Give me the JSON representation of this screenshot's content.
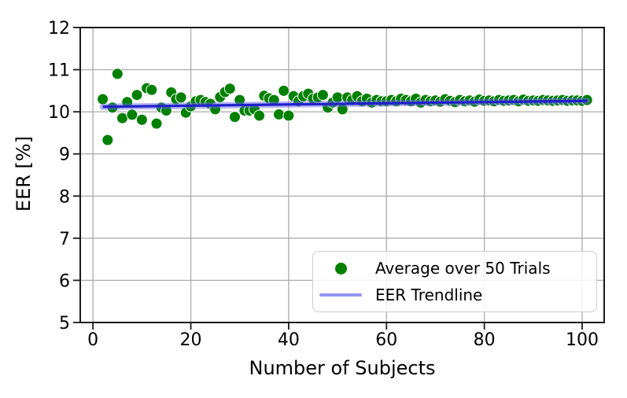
{
  "figure": {
    "background": "#ffffff"
  },
  "legend": {
    "items": [
      {
        "label": "Average over 50 Trials",
        "marker": "dot-icon",
        "color": "#008000"
      },
      {
        "label": "EER Trendline",
        "marker": "line-icon",
        "color": "#9595f2"
      }
    ],
    "position": "lower right"
  },
  "chart_data": {
    "type": "scatter",
    "title": "",
    "xlabel": "Number of Subjects",
    "ylabel": "EER [%]",
    "xlim": [
      -2.6,
      104.5
    ],
    "ylim": [
      5,
      12
    ],
    "x_ticks": [
      0,
      20,
      40,
      60,
      80,
      100
    ],
    "y_ticks": [
      5,
      6,
      7,
      8,
      9,
      10,
      11,
      12
    ],
    "grid": true,
    "legend_position": "lower right",
    "colors": {
      "scatter": "#008000",
      "marker_edge": "#ffffff",
      "trend_core": "#2121c8",
      "trend_halo": "rgba(105,105,240,0.5)",
      "legend_line": "#9595f2",
      "grid": "#b0b0b0",
      "spine": "#1a1a1a",
      "text": "#000000"
    },
    "series": [
      {
        "name": "Average over 50 Trials",
        "type": "scatter",
        "color": "#008000",
        "marker_radius": 7,
        "x": [
          2,
          3,
          4,
          5,
          6,
          7,
          8,
          9,
          10,
          11,
          12,
          13,
          14,
          15,
          16,
          17,
          18,
          19,
          20,
          21,
          22,
          23,
          24,
          25,
          26,
          27,
          28,
          29,
          30,
          31,
          32,
          33,
          34,
          35,
          36,
          37,
          38,
          39,
          40,
          41,
          42,
          43,
          44,
          45,
          46,
          47,
          48,
          49,
          50,
          51,
          52,
          53,
          54,
          55,
          56,
          57,
          58,
          59,
          60,
          61,
          62,
          63,
          64,
          65,
          66,
          67,
          68,
          69,
          70,
          71,
          72,
          73,
          74,
          75,
          76,
          77,
          78,
          79,
          80,
          81,
          82,
          83,
          84,
          85,
          86,
          87,
          88,
          89,
          90,
          91,
          92,
          93,
          94,
          95,
          96,
          97,
          98,
          99,
          100,
          101
        ],
        "y": [
          10.3,
          9.33,
          10.1,
          10.9,
          9.85,
          10.23,
          9.93,
          10.4,
          9.81,
          10.56,
          10.52,
          9.72,
          10.1,
          10.03,
          10.46,
          10.3,
          10.34,
          9.98,
          10.13,
          10.25,
          10.28,
          10.23,
          10.19,
          10.06,
          10.35,
          10.47,
          10.55,
          9.88,
          10.28,
          10.03,
          10.03,
          10.06,
          9.91,
          10.38,
          10.32,
          10.28,
          9.94,
          10.5,
          9.91,
          10.37,
          10.25,
          10.37,
          10.43,
          10.31,
          10.34,
          10.4,
          10.1,
          10.22,
          10.34,
          10.06,
          10.34,
          10.28,
          10.37,
          10.25,
          10.31,
          10.22,
          10.28,
          10.25,
          10.25,
          10.28,
          10.25,
          10.31,
          10.28,
          10.25,
          10.31,
          10.22,
          10.28,
          10.25,
          10.27,
          10.24,
          10.3,
          10.26,
          10.23,
          10.28,
          10.25,
          10.27,
          10.24,
          10.29,
          10.26,
          10.27,
          10.25,
          10.28,
          10.26,
          10.27,
          10.28,
          10.25,
          10.29,
          10.26,
          10.27,
          10.26,
          10.28,
          10.27,
          10.26,
          10.27,
          10.28,
          10.26,
          10.27,
          10.27,
          10.26,
          10.28
        ]
      },
      {
        "name": "EER Trendline",
        "type": "line",
        "color": "#2121c8",
        "halo_color": "rgba(105,105,240,0.5)",
        "x": [
          2,
          101
        ],
        "y": [
          10.12,
          10.26
        ]
      }
    ]
  }
}
